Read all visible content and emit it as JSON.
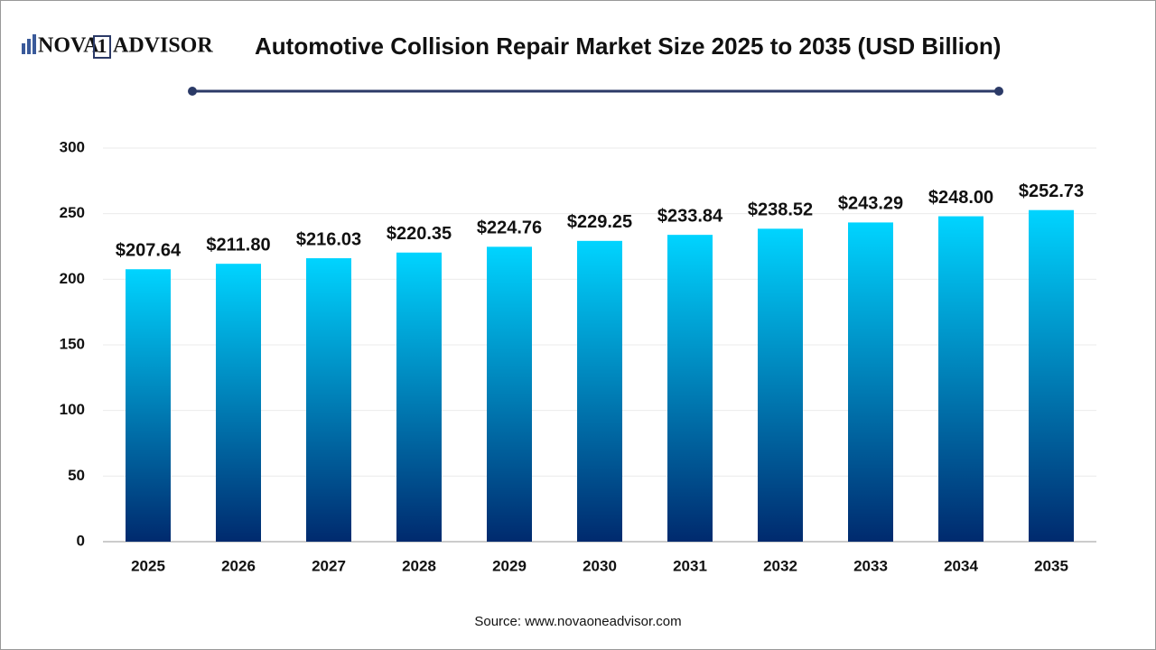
{
  "chart_data": {
    "type": "bar",
    "logo": {
      "left": "NOVA",
      "mid": "1",
      "right": "ADVISOR"
    },
    "title": "Automotive Collision Repair Market Size 2025 to 2035 (USD Billion)",
    "categories": [
      "2025",
      "2026",
      "2027",
      "2028",
      "2029",
      "2030",
      "2031",
      "2032",
      "2033",
      "2034",
      "2035"
    ],
    "values": [
      207.64,
      211.8,
      216.03,
      220.35,
      224.76,
      229.25,
      233.84,
      238.52,
      243.29,
      248.0,
      252.73
    ],
    "value_labels": [
      "$207.64",
      "$211.80",
      "$216.03",
      "$220.35",
      "$224.76",
      "$229.25",
      "$233.84",
      "$238.52",
      "$243.29",
      "$248.00",
      "$252.73"
    ],
    "color": [
      "#00d4ff",
      "#002a6e"
    ],
    "ylim": [
      0,
      300
    ],
    "yticks": [
      0,
      50,
      100,
      150,
      200,
      250,
      300
    ],
    "grid": true,
    "source": "Source: www.novaoneadvisor.com"
  }
}
